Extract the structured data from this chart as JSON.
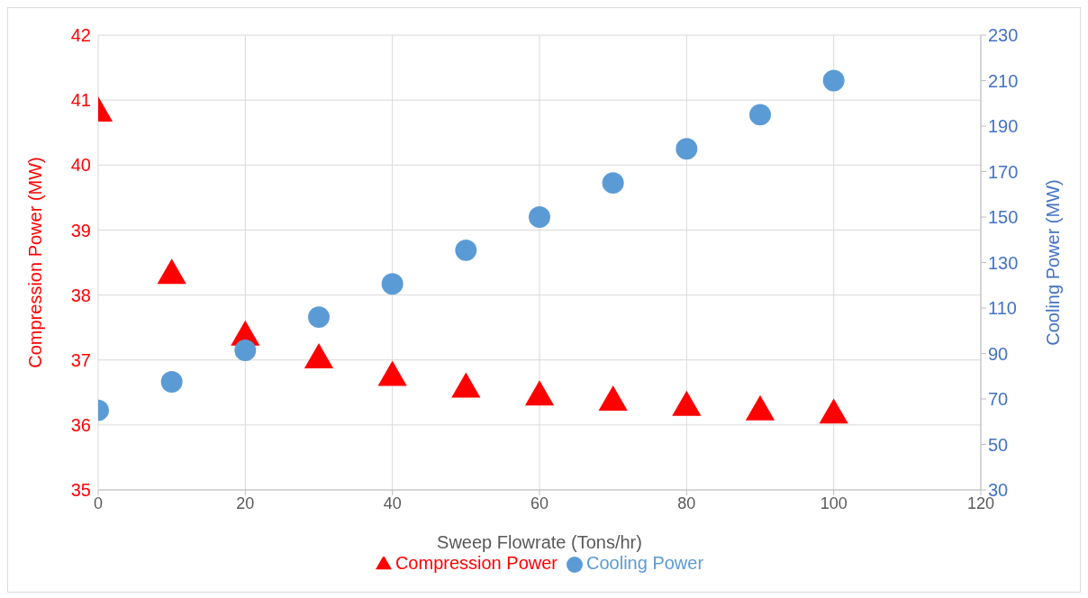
{
  "chart_data": {
    "type": "scatter",
    "xlabel": "Sweep Flowrate (Tons/hr)",
    "ylabel": "Compression Power (MW)",
    "y2label": "Cooling Power (MW)",
    "x": [
      0,
      10,
      20,
      30,
      40,
      50,
      60,
      70,
      80,
      90,
      100
    ],
    "series": [
      {
        "name": "Compression Power",
        "color": "#ff0000",
        "marker": "triangle",
        "values": [
          40.8,
          38.3,
          37.35,
          37.0,
          36.73,
          36.55,
          36.43,
          36.35,
          36.27,
          36.2,
          36.15
        ]
      },
      {
        "name": "Cooling Power",
        "color": "#5b9bd5",
        "marker": "circle",
        "axis": "y2",
        "values": [
          65,
          77.5,
          91.4,
          106,
          120.6,
          135.4,
          150,
          165,
          180,
          195,
          210
        ]
      }
    ],
    "xlim": [
      0,
      120
    ],
    "xticks": [
      0,
      20,
      40,
      60,
      80,
      100,
      120
    ],
    "ylim": [
      35,
      42
    ],
    "yticks": [
      35,
      36,
      37,
      38,
      39,
      40,
      41,
      42
    ],
    "y2lim": [
      30,
      230
    ],
    "y2ticks": [
      30,
      50,
      70,
      90,
      110,
      130,
      150,
      170,
      190,
      210,
      230
    ],
    "grid": true,
    "legend": "bottom"
  }
}
